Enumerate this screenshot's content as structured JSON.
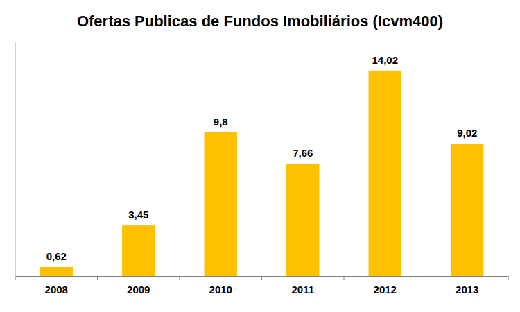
{
  "chart_data": {
    "type": "bar",
    "title": "Ofertas Publicas de Fundos Imobiliários (Icvm400)",
    "categories": [
      "2008",
      "2009",
      "2010",
      "2011",
      "2012",
      "2013"
    ],
    "values": [
      0.62,
      3.45,
      9.8,
      7.66,
      14.02,
      9.02
    ],
    "value_labels": [
      "0,62",
      "3,45",
      "9,8",
      "7,66",
      "14,02",
      "9,02"
    ],
    "color": "#FFC000",
    "ylim": [
      0,
      16
    ],
    "data_labels": true,
    "tick_labels": "x",
    "grid": false
  }
}
